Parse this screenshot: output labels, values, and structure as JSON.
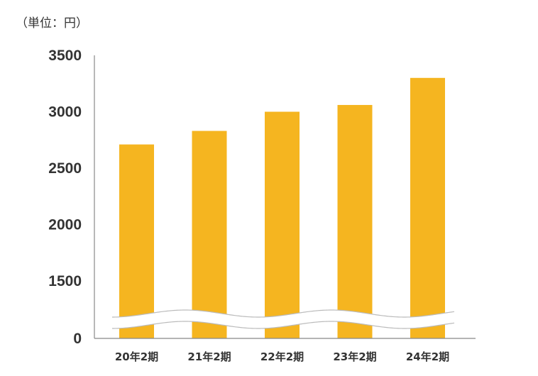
{
  "chart_data": {
    "type": "bar",
    "unit_label": "（単位：円）",
    "categories": [
      "20年2期",
      "21年2期",
      "22年2期",
      "23年2期",
      "24年2期"
    ],
    "values": [
      2710,
      2830,
      3000,
      3060,
      3300
    ],
    "y_ticks": [
      "3500",
      "3000",
      "2500",
      "2000",
      "1500",
      "0"
    ],
    "y_tick_values": [
      3500,
      3000,
      2500,
      2000,
      1500,
      0
    ],
    "axis_break": true,
    "ylim": [
      0,
      3500
    ],
    "bar_color": "#F5B520",
    "axis_color": "#888888",
    "text_color": "#333333",
    "grid": false
  }
}
